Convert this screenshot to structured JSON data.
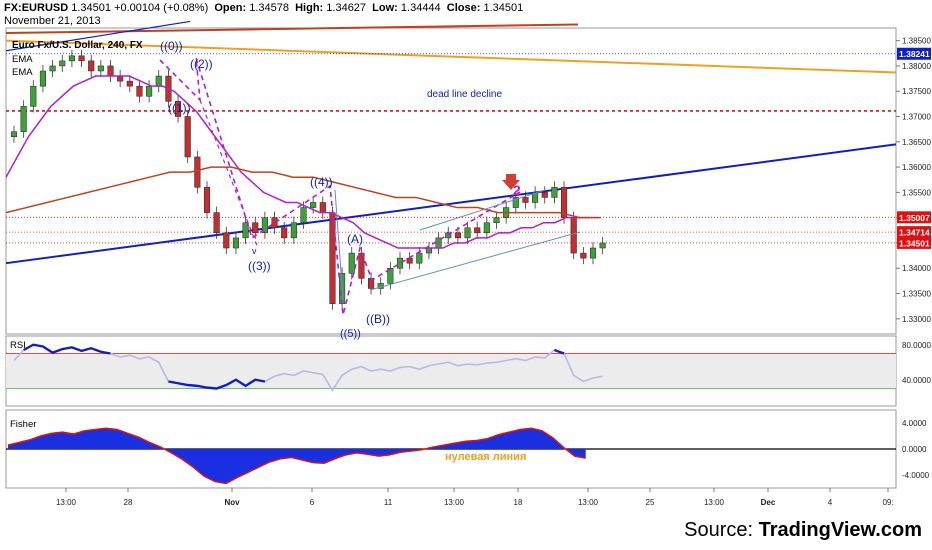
{
  "header": {
    "symbol": "FX:EURUSD",
    "last": "1.34501",
    "change": "+0.00104 (+0.08%)",
    "open_label": "Open:",
    "open": "1.34578",
    "high_label": "High:",
    "high": "1.34627",
    "low_label": "Low:",
    "low": "1.34444",
    "close_label": "Close:",
    "close": "1.34501",
    "date": "November 21, 2013"
  },
  "source": {
    "prefix": "Source:",
    "brand": "TradingView.com"
  },
  "colors": {
    "up_candle": "#3da03d",
    "down_candle": "#c03030",
    "ma_purple": "#b020d0",
    "ma_brown": "#c04020",
    "trend_blue": "#1020c0",
    "orange_line": "#f0a020",
    "red_level": "#e01010",
    "rsi_line": "#1020c0",
    "wave_line": "#b020d0",
    "price_tag_red": "#e01010",
    "price_tag_blue": "#1020c0"
  },
  "chart_data": [
    {
      "type": "candlestick",
      "title": "Euro Fx/U.S. Dollar, 240, FX",
      "legend": [
        "EMA",
        "EMA"
      ],
      "ylim": [
        1.327,
        1.3875
      ],
      "y_ticks": [
        "1.38500",
        "1.38000",
        "1.37500",
        "1.37000",
        "1.36500",
        "1.36000",
        "1.35500",
        "1.35000",
        "1.34500",
        "1.34000",
        "1.33500",
        "1.33000"
      ],
      "y_tick_values": [
        1.385,
        1.38,
        1.375,
        1.37,
        1.365,
        1.36,
        1.355,
        1.35,
        1.345,
        1.34,
        1.335,
        1.33
      ],
      "x_tick_labels": [
        "13:00",
        "28",
        "Nov",
        "6",
        "11",
        "13:00",
        "18",
        "13:00",
        "25",
        "13:00",
        "Dec",
        "4",
        "09:"
      ],
      "price_tags": [
        {
          "value": 1.38241,
          "label": "1.38241",
          "style": "blue"
        },
        {
          "value": 1.35007,
          "label": "1.35007",
          "style": "red"
        },
        {
          "value": 1.34714,
          "label": "1.34714",
          "style": "red"
        },
        {
          "value": 1.34501,
          "label": "1.34501",
          "style": "red"
        }
      ],
      "close_path": [
        1.367,
        1.372,
        1.376,
        1.379,
        1.38,
        1.381,
        1.382,
        1.381,
        1.379,
        1.38,
        1.378,
        1.377,
        1.376,
        1.374,
        1.376,
        1.378,
        1.373,
        1.37,
        1.362,
        1.356,
        1.351,
        1.347,
        1.344,
        1.346,
        1.349,
        1.347,
        1.35,
        1.348,
        1.346,
        1.349,
        1.352,
        1.353,
        1.351,
        1.333,
        1.339,
        1.343,
        1.338,
        1.336,
        1.337,
        1.34,
        1.342,
        1.341,
        1.343,
        1.344,
        1.346,
        1.347,
        1.346,
        1.348,
        1.347,
        1.349,
        1.35,
        1.352,
        1.354,
        1.353,
        1.355,
        1.354,
        1.356,
        1.35,
        1.343,
        1.342,
        1.344,
        1.345
      ],
      "ema_fast": [
        1.358,
        1.362,
        1.366,
        1.369,
        1.372,
        1.374,
        1.376,
        1.377,
        1.378,
        1.378,
        1.378,
        1.378,
        1.377,
        1.376,
        1.376,
        1.375,
        1.373,
        1.371,
        1.368,
        1.365,
        1.362,
        1.359,
        1.357,
        1.355,
        1.354,
        1.353,
        1.353,
        1.352,
        1.351,
        1.351,
        1.35,
        1.349,
        1.347,
        1.346,
        1.345,
        1.344,
        1.344,
        1.344,
        1.344,
        1.344,
        1.345,
        1.345,
        1.346,
        1.346,
        1.347,
        1.347,
        1.348,
        1.348,
        1.349,
        1.349,
        1.35,
        1.35,
        1.35
      ],
      "ema_slow": [
        1.351,
        1.352,
        1.353,
        1.354,
        1.355,
        1.356,
        1.357,
        1.358,
        1.359,
        1.359,
        1.36,
        1.36,
        1.359,
        1.359,
        1.358,
        1.358,
        1.357,
        1.356,
        1.355,
        1.354,
        1.354,
        1.353,
        1.352,
        1.352,
        1.351,
        1.351,
        1.351,
        1.351,
        1.35,
        1.35
      ],
      "horizontal_levels": [
        1.3711
      ],
      "trendlines": [
        "blue rising support",
        "orange falling",
        "red falling upper"
      ],
      "annotations": [
        "dead line decline",
        "((0))",
        "((2))",
        "((1))",
        "((3))",
        "((4))",
        "((5))",
        "(A)",
        "((B))",
        "2",
        "v"
      ]
    },
    {
      "type": "line",
      "title": "RSI",
      "ylim": [
        10,
        90
      ],
      "y_ticks": [
        "80.0000",
        "40.0000"
      ],
      "y_tick_values": [
        80,
        40
      ],
      "band": [
        30,
        70
      ],
      "values": [
        62,
        74,
        80,
        78,
        71,
        75,
        77,
        73,
        76,
        72,
        70,
        66,
        68,
        64,
        66,
        60,
        38,
        36,
        34,
        33,
        31,
        30,
        34,
        40,
        33,
        40,
        38,
        44,
        47,
        45,
        50,
        48,
        46,
        28,
        45,
        52,
        55,
        50,
        52,
        50,
        54,
        55,
        52,
        56,
        58,
        60,
        56,
        58,
        57,
        59,
        60,
        62,
        64,
        62,
        66,
        65,
        74,
        70,
        45,
        38,
        42,
        44
      ]
    },
    {
      "type": "area",
      "title": "Fisher",
      "ylim": [
        -6,
        6
      ],
      "y_ticks": [
        "4.0000",
        "0.0000",
        "-4.0000"
      ],
      "y_tick_values": [
        4,
        0,
        -4
      ],
      "annotation": "нулевая линия",
      "values": [
        0.6,
        1.0,
        1.4,
        2.0,
        2.4,
        2.6,
        2.3,
        2.8,
        3.0,
        3.2,
        3.0,
        2.4,
        1.8,
        1.0,
        0.3,
        -0.6,
        -1.6,
        -2.8,
        -4.2,
        -5.0,
        -5.3,
        -4.4,
        -3.6,
        -2.8,
        -2.0,
        -1.5,
        -1.3,
        -1.7,
        -2.1,
        -2.2,
        -1.5,
        -0.9,
        -0.6,
        -0.8,
        -1.1,
        -0.9,
        -0.5,
        -0.3,
        -0.1,
        0.3,
        0.6,
        0.9,
        1.2,
        1.3,
        1.6,
        2.2,
        2.6,
        3.0,
        3.2,
        2.8,
        1.7,
        0.2,
        -1.1,
        -1.4
      ]
    }
  ]
}
